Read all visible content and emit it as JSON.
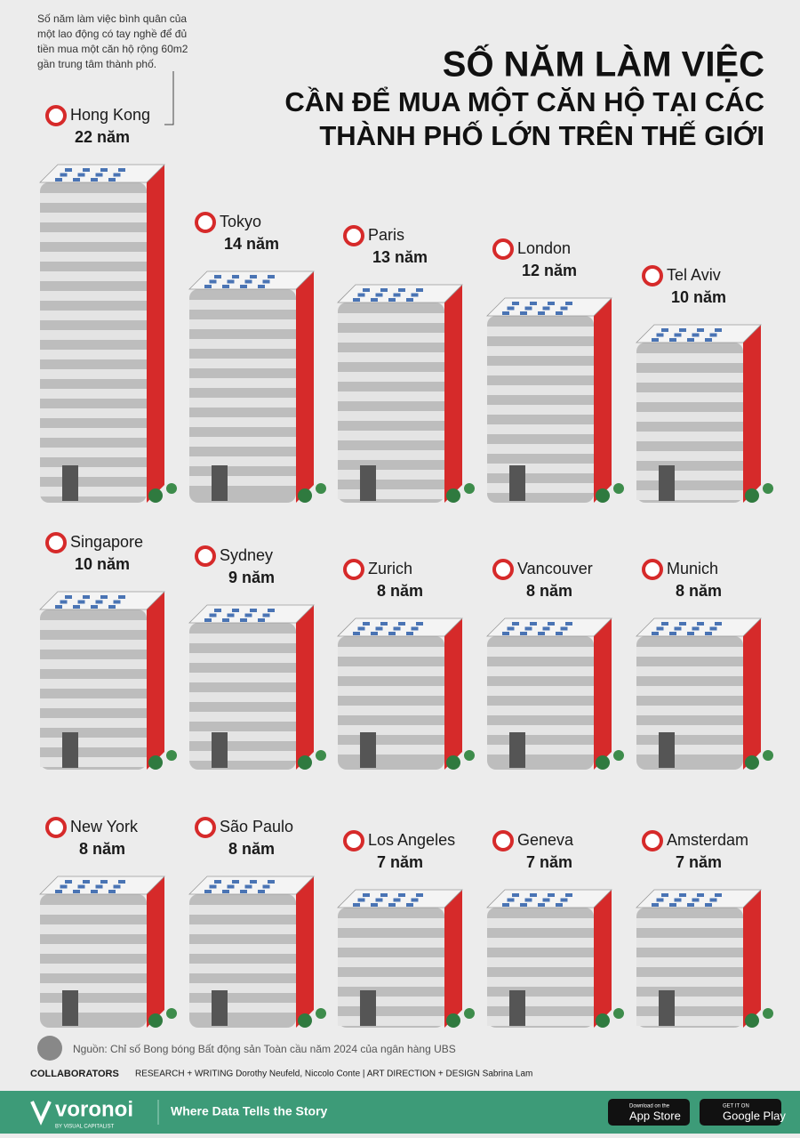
{
  "note": [
    "Số năm làm việc bình quân của",
    "một lao động có tay nghề để đủ",
    "tiền mua một căn hộ rộng 60m2",
    "gần trung tâm thành phố."
  ],
  "chart_data": {
    "type": "pictograph",
    "title": [
      "SỐ NĂM LÀM VIỆC",
      "CẦN ĐỂ MUA MỘT CĂN HỘ TẠI CÁC",
      "THÀNH PHỐ LỚN TRÊN THẾ GIỚI"
    ],
    "categories": [
      "Hong Kong",
      "Tokyo",
      "Paris",
      "London",
      "Tel Aviv",
      "Singapore",
      "Sydney",
      "Zurich",
      "Vancouver",
      "Munich",
      "New York",
      "São Paulo",
      "Los Angeles",
      "Geneva",
      "Amsterdam"
    ],
    "values": [
      22,
      14,
      13,
      12,
      10,
      10,
      9,
      8,
      8,
      8,
      8,
      8,
      7,
      7,
      7
    ],
    "value_labels": [
      "22 năm",
      "14 năm",
      "13 năm",
      "12 năm",
      "10 năm",
      "10 năm",
      "9 năm",
      "8 năm",
      "8 năm",
      "8 năm",
      "8 năm",
      "8 năm",
      "7 năm",
      "7 năm",
      "7 năm"
    ],
    "color": "#d62a2a"
  },
  "source": "Nguồn: Chỉ số Bong bóng Bất động sản Toàn cầu năm 2024 của ngân hàng UBS",
  "credits": {
    "label": "COLLABORATORS",
    "text": "RESEARCH + WRITING Dorothy Neufeld, Niccolo Conte  |  ART DIRECTION + DESIGN Sabrina Lam"
  },
  "footer": {
    "brand": "voronoi",
    "brand_sub": "BY VISUAL CAPITALIST",
    "tagline": "Where Data Tells the Story",
    "app_store": [
      "Download on the",
      "App Store"
    ],
    "google_play": [
      "GET IT ON",
      "Google Play"
    ]
  }
}
